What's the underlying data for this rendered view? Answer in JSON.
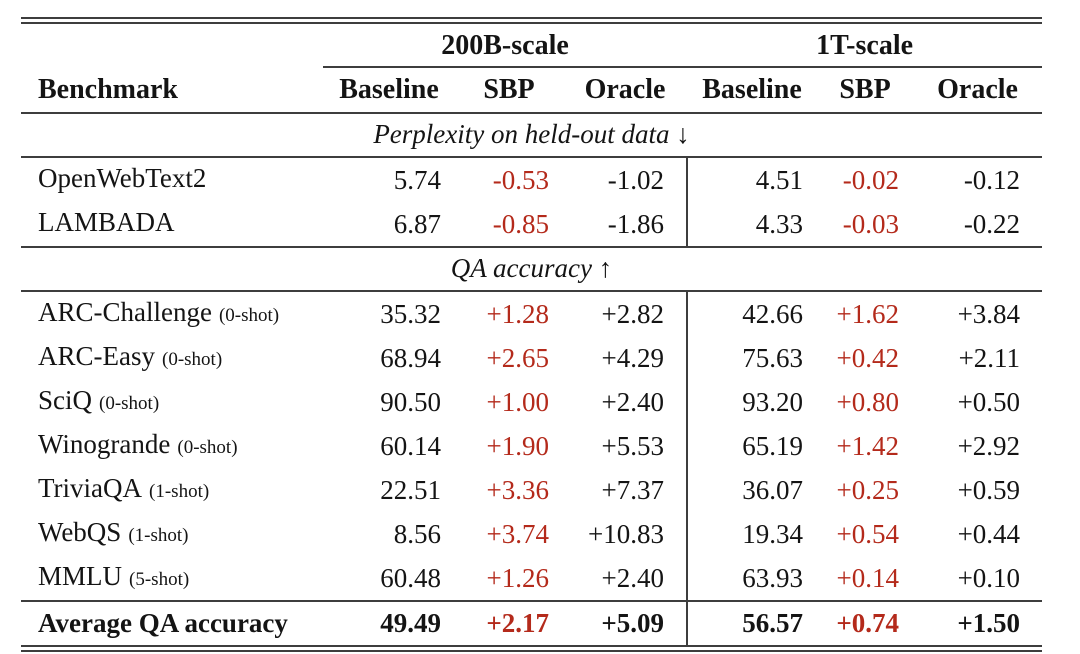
{
  "page": {
    "background": "#ffffff",
    "text_color": "#141414",
    "rule_color": "#3d3d3d",
    "accent_red": "#b42a1b"
  },
  "table": {
    "col_groups": [
      {
        "label": "200B-scale"
      },
      {
        "label": "1T-scale"
      }
    ],
    "headers": {
      "benchmark": "Benchmark",
      "sub": [
        "Baseline",
        "SBP",
        "Oracle",
        "Baseline",
        "SBP",
        "Oracle"
      ]
    },
    "sections": [
      {
        "title": "Perplexity on held-out data ↓",
        "rows": [
          {
            "name": "OpenWebText2",
            "shot": "",
            "values": [
              "5.74",
              "-0.53",
              "-1.02",
              "4.51",
              "-0.02",
              "-0.12"
            ]
          },
          {
            "name": "LAMBADA",
            "shot": "",
            "values": [
              "6.87",
              "-0.85",
              "-1.86",
              "4.33",
              "-0.03",
              "-0.22"
            ]
          }
        ]
      },
      {
        "title": "QA accuracy ↑",
        "rows": [
          {
            "name": "ARC-Challenge",
            "shot": "(0-shot)",
            "values": [
              "35.32",
              "+1.28",
              "+2.82",
              "42.66",
              "+1.62",
              "+3.84"
            ]
          },
          {
            "name": "ARC-Easy",
            "shot": "(0-shot)",
            "values": [
              "68.94",
              "+2.65",
              "+4.29",
              "75.63",
              "+0.42",
              "+2.11"
            ]
          },
          {
            "name": "SciQ",
            "shot": "(0-shot)",
            "values": [
              "90.50",
              "+1.00",
              "+2.40",
              "93.20",
              "+0.80",
              "+0.50"
            ]
          },
          {
            "name": "Winogrande",
            "shot": "(0-shot)",
            "values": [
              "60.14",
              "+1.90",
              "+5.53",
              "65.19",
              "+1.42",
              "+2.92"
            ]
          },
          {
            "name": "TriviaQA",
            "shot": "(1-shot)",
            "values": [
              "22.51",
              "+3.36",
              "+7.37",
              "36.07",
              "+0.25",
              "+0.59"
            ]
          },
          {
            "name": "WebQS",
            "shot": "(1-shot)",
            "values": [
              "8.56",
              "+3.74",
              "+10.83",
              "19.34",
              "+0.54",
              "+0.44"
            ]
          },
          {
            "name": "MMLU",
            "shot": "(5-shot)",
            "values": [
              "60.48",
              "+1.26",
              "+2.40",
              "63.93",
              "+0.14",
              "+0.10"
            ]
          }
        ]
      }
    ],
    "footer": {
      "name": "Average QA accuracy",
      "values": [
        "49.49",
        "+2.17",
        "+5.09",
        "56.57",
        "+0.74",
        "+1.50"
      ]
    }
  }
}
